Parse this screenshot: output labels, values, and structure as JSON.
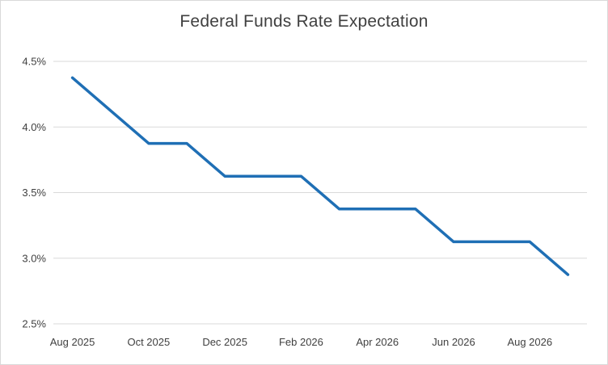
{
  "title": "Federal Funds Rate Expectation",
  "colors": {
    "line": "#1F6FB5",
    "gridline": "#D9D9D9",
    "axis_text": "#404040",
    "border": "#D9D9D9",
    "background": "#FFFFFF"
  },
  "chart_data": {
    "type": "line",
    "title": "Federal Funds Rate Expectation",
    "x": [
      "Aug 2025",
      "Sep 2025",
      "Oct 2025",
      "Nov 2025",
      "Dec 2025",
      "Jan 2026",
      "Feb 2026",
      "Mar 2026",
      "Apr 2026",
      "May 2026",
      "Jun 2026",
      "Jul 2026",
      "Aug 2026",
      "Sep 2026"
    ],
    "values": [
      4.375,
      4.125,
      3.875,
      3.875,
      3.625,
      3.625,
      3.625,
      3.375,
      3.375,
      3.375,
      3.125,
      3.125,
      3.125,
      2.875
    ],
    "x_tick_labels": [
      "Aug 2025",
      "Oct 2025",
      "Dec 2025",
      "Feb 2026",
      "Apr 2026",
      "Jun 2026",
      "Aug 2026"
    ],
    "x_tick_every": 2,
    "y_ticks": [
      4.5,
      4.0,
      3.5,
      3.0,
      2.5
    ],
    "y_tick_labels": [
      "4.5%",
      "4.0%",
      "3.5%",
      "3.0%",
      "2.5%"
    ],
    "ylim": [
      2.5,
      4.5
    ],
    "xlabel": "",
    "ylabel": "",
    "grid": "horizontal",
    "legend": "none"
  }
}
